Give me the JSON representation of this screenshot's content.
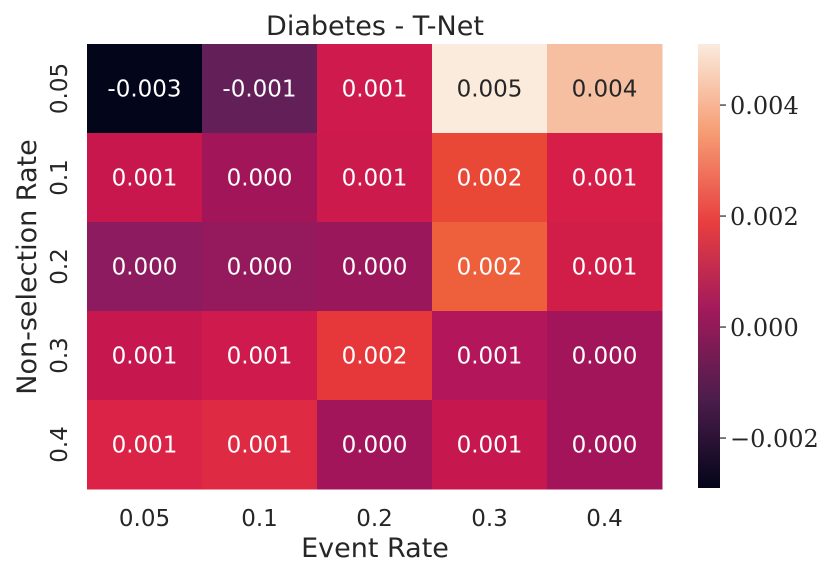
{
  "chart_data": {
    "type": "heatmap",
    "title": "Diabetes - T-Net",
    "xlabel": "Event Rate",
    "ylabel": "Non-selection Rate",
    "x_categories": [
      "0.05",
      "0.1",
      "0.2",
      "0.3",
      "0.4"
    ],
    "y_categories": [
      "0.05",
      "0.1",
      "0.2",
      "0.3",
      "0.4"
    ],
    "values": [
      [
        -0.003,
        -0.001,
        0.001,
        0.005,
        0.004
      ],
      [
        0.001,
        0.0,
        0.001,
        0.002,
        0.001
      ],
      [
        0.0,
        0.0,
        0.0,
        0.002,
        0.001
      ],
      [
        0.001,
        0.001,
        0.002,
        0.001,
        0.0
      ],
      [
        0.001,
        0.001,
        0.0,
        0.001,
        0.0
      ]
    ],
    "cell_labels": [
      [
        "-0.003",
        "-0.001",
        "0.001",
        "0.005",
        "0.004"
      ],
      [
        "0.001",
        "0.000",
        "0.001",
        "0.002",
        "0.001"
      ],
      [
        "0.000",
        "0.000",
        "0.000",
        "0.002",
        "0.001"
      ],
      [
        "0.001",
        "0.001",
        "0.002",
        "0.001",
        "0.000"
      ],
      [
        "0.001",
        "0.001",
        "0.000",
        "0.001",
        "0.000"
      ]
    ],
    "cell_colors": [
      [
        "#03051a",
        "#631f58",
        "#ce1a4c",
        "#faebdd",
        "#f6bfa2"
      ],
      [
        "#c7174d",
        "#a21559",
        "#cc1a4c",
        "#e94837",
        "#d61e48"
      ],
      [
        "#8d1b5f",
        "#951a5d",
        "#9b175c",
        "#ee5f3c",
        "#d11e48"
      ],
      [
        "#c6184e",
        "#ce1a4c",
        "#e6383b",
        "#b3165a",
        "#a3155b"
      ],
      [
        "#db2347",
        "#df2a44",
        "#a3155a",
        "#c6184e",
        "#a4145a"
      ]
    ],
    "colorbar": {
      "range": [
        -0.0029,
        0.0051
      ],
      "ticks": [
        -0.002,
        0.0,
        0.002,
        0.004
      ],
      "tick_labels": [
        "−0.002",
        "0.000",
        "0.002",
        "0.004"
      ],
      "stops": [
        "#03051a",
        "#4c1d4b",
        "#a11a5b",
        "#e83f3f",
        "#f69c73",
        "#faebdd"
      ]
    }
  }
}
